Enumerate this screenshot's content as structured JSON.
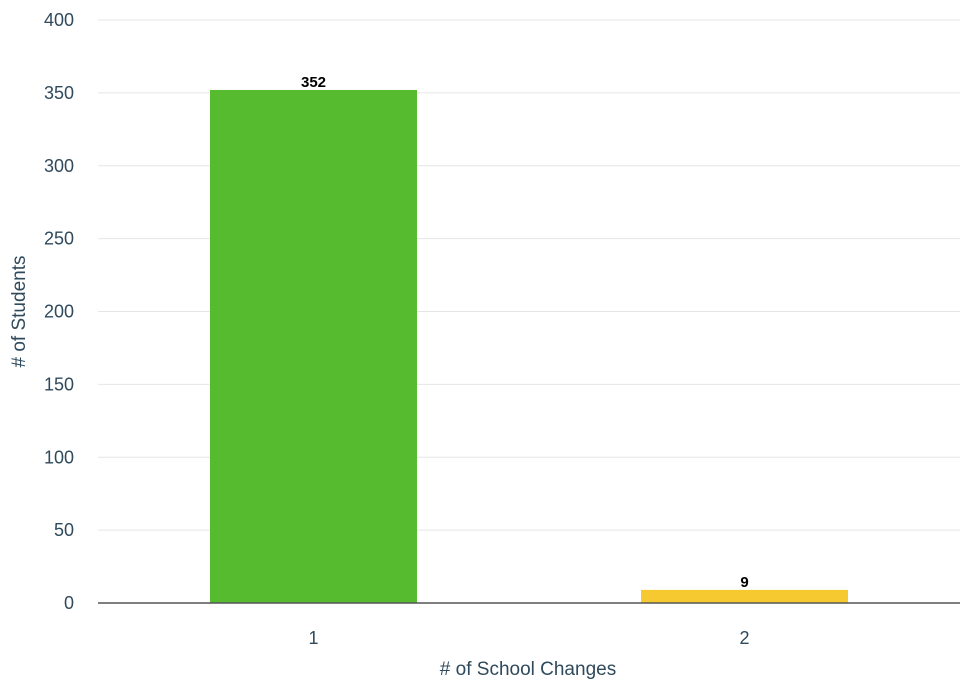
{
  "chart_data": {
    "type": "bar",
    "categories": [
      "1",
      "2"
    ],
    "values": [
      352,
      9
    ],
    "data_labels": [
      "352",
      "9"
    ],
    "bar_colors": [
      "#56bb2f",
      "#f5c92f"
    ],
    "xlabel": "# of School Changes",
    "ylabel": "# of Students",
    "ylim": [
      0,
      400
    ],
    "yticks": [
      0,
      50,
      100,
      150,
      200,
      250,
      300,
      350,
      400
    ],
    "ytick_labels": [
      "0",
      "50",
      "100",
      "150",
      "200",
      "250",
      "300",
      "350",
      "400"
    ],
    "grid": true,
    "legend": "none"
  },
  "colors": {
    "axis_text": "#2f4a5c",
    "gridline": "#e6e6e6",
    "baseline": "#555555"
  }
}
